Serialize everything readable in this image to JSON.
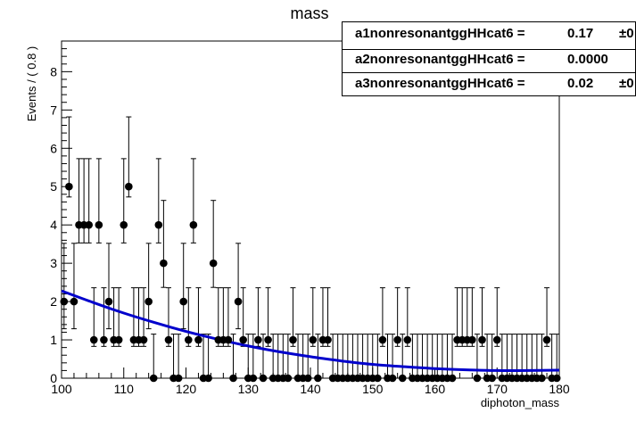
{
  "chart_data": {
    "type": "scatter",
    "title": "mass",
    "xlabel": "diphoton_mass",
    "ylabel": "Events / ( 0.8 )",
    "xlim": [
      100,
      180
    ],
    "ylim": [
      0,
      8.8
    ],
    "xticks": [
      100,
      110,
      120,
      130,
      140,
      150,
      160,
      170,
      180
    ],
    "yticks": [
      0,
      1,
      2,
      3,
      4,
      5,
      6,
      7,
      8
    ],
    "bin_width": 0.8,
    "points_color": "#000000",
    "fit_color": "#0000cc",
    "series": [
      {
        "values": [
          2,
          5,
          2,
          4,
          4,
          4,
          1,
          4,
          1,
          2,
          1,
          1,
          4,
          5,
          1,
          1,
          1,
          2,
          0,
          4,
          3,
          1,
          0,
          0,
          2,
          1,
          4,
          1,
          0,
          0,
          3,
          1,
          1,
          1,
          0,
          2,
          1,
          0,
          0,
          1,
          0,
          1,
          0,
          0,
          0,
          0,
          1,
          0,
          0,
          0,
          1,
          0,
          1,
          1,
          0,
          0,
          0,
          0,
          0,
          0,
          0,
          0,
          0,
          0,
          1,
          0,
          0,
          1,
          0,
          1,
          0,
          0,
          0,
          0,
          0,
          0,
          0,
          0,
          0,
          1,
          1,
          1,
          1,
          0,
          1,
          0,
          0,
          1,
          0,
          0,
          0,
          0,
          0,
          0,
          0,
          0,
          0,
          1,
          0,
          0
        ]
      }
    ],
    "fit_curve": {
      "x": [
        100,
        105,
        110,
        115,
        120,
        125,
        130,
        135,
        140,
        145,
        150,
        155,
        160,
        165,
        170,
        175,
        180
      ],
      "y": [
        2.28,
        1.98,
        1.7,
        1.45,
        1.22,
        1.02,
        0.84,
        0.69,
        0.56,
        0.45,
        0.36,
        0.3,
        0.25,
        0.22,
        0.2,
        0.2,
        0.21
      ]
    }
  },
  "legend": {
    "rows": [
      {
        "name": "a1nonresonantggHHcat6 =",
        "value": "0.17",
        "err": "±0"
      },
      {
        "name": "a2nonresonantggHHcat6 =",
        "value": "0.0000",
        "err": ""
      },
      {
        "name": "a3nonresonantggHHcat6 =",
        "value": "0.02",
        "err": "±0"
      }
    ]
  }
}
